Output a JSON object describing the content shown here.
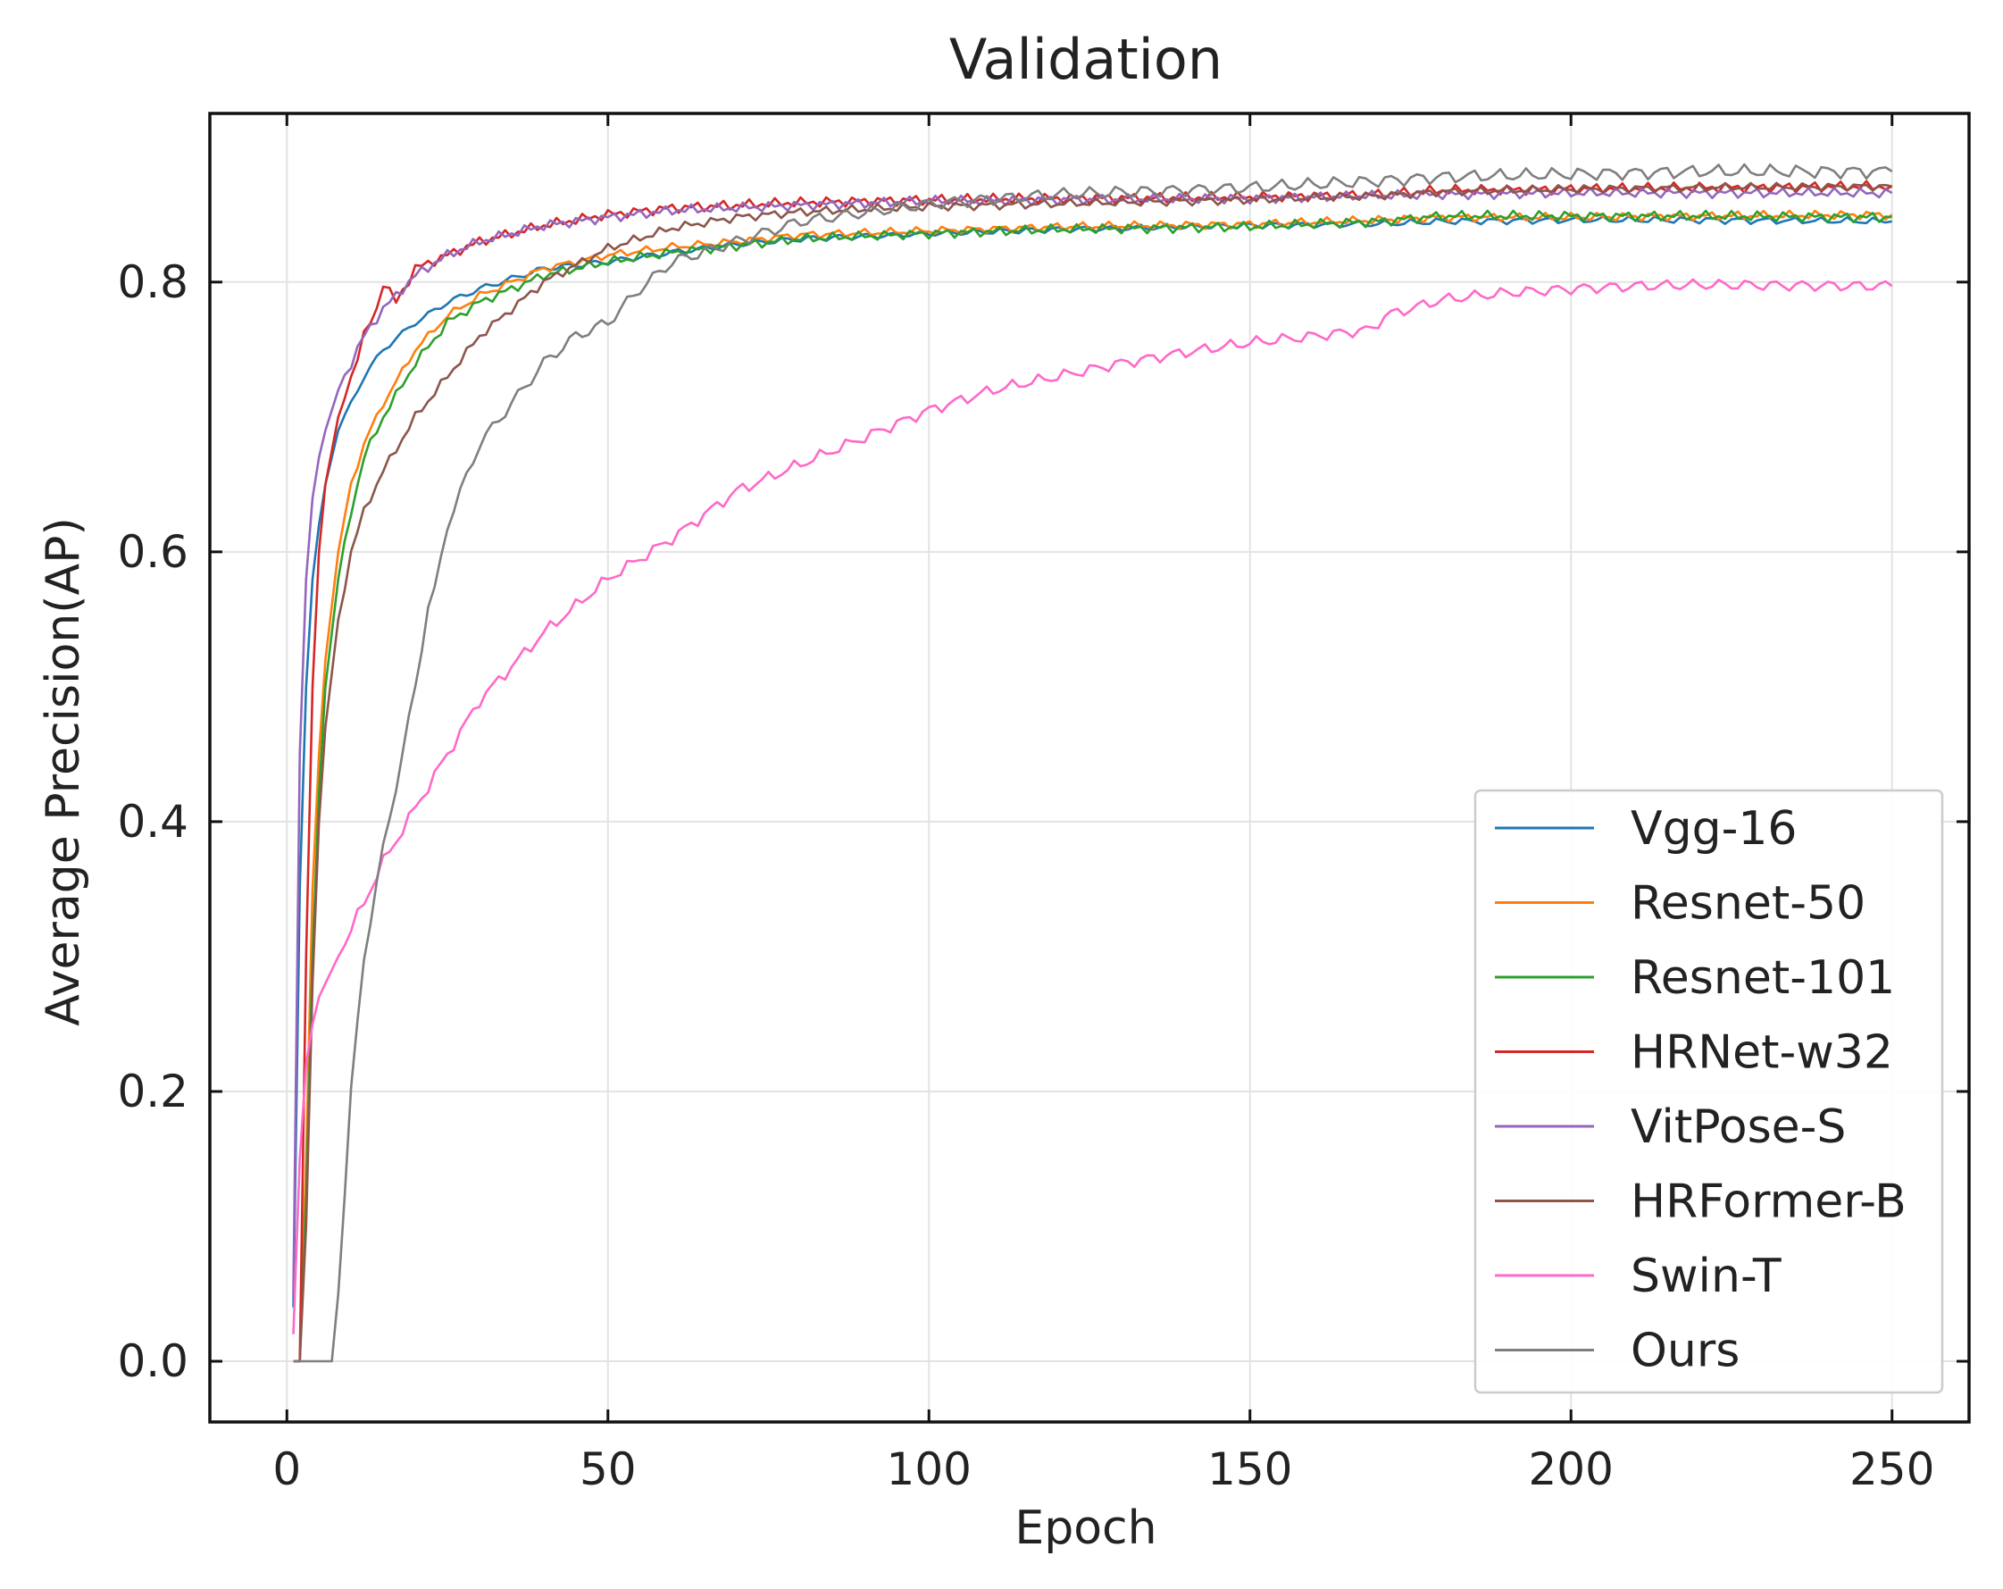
{
  "chart_data": {
    "type": "line",
    "title": "Validation",
    "xlabel": "Epoch",
    "ylabel": "Average Precision(AP)",
    "xlim": [
      -12,
      262
    ],
    "ylim": [
      -0.045,
      0.925
    ],
    "xticks": [
      0,
      50,
      100,
      150,
      200,
      250
    ],
    "xtick_labels": [
      "0",
      "50",
      "100",
      "150",
      "200",
      "250"
    ],
    "yticks": [
      0.0,
      0.2,
      0.4,
      0.6,
      0.8
    ],
    "ytick_labels": [
      "0.0",
      "0.2",
      "0.4",
      "0.6",
      "0.8"
    ],
    "grid": true,
    "legend_position": "lower-right",
    "series": [
      {
        "name": "Vgg-16",
        "color": "#1f77b4",
        "x": [
          1,
          2,
          3,
          4,
          5,
          6,
          7,
          8,
          10,
          12,
          15,
          20,
          25,
          30,
          40,
          50,
          60,
          70,
          80,
          100,
          120,
          150,
          170,
          180,
          200,
          220,
          250
        ],
        "y": [
          0.04,
          0.35,
          0.5,
          0.58,
          0.62,
          0.65,
          0.67,
          0.69,
          0.71,
          0.73,
          0.75,
          0.77,
          0.785,
          0.795,
          0.81,
          0.815,
          0.822,
          0.828,
          0.832,
          0.836,
          0.839,
          0.842,
          0.843,
          0.845,
          0.846,
          0.846,
          0.845
        ]
      },
      {
        "name": "Resnet-50",
        "color": "#ff7f0e",
        "x": [
          1,
          2,
          3,
          4,
          5,
          6,
          8,
          10,
          12,
          15,
          20,
          25,
          30,
          40,
          50,
          60,
          70,
          80,
          100,
          120,
          150,
          170,
          180,
          200,
          220,
          250
        ],
        "y": [
          0.0,
          0.0,
          0.15,
          0.35,
          0.45,
          0.52,
          0.6,
          0.65,
          0.68,
          0.71,
          0.75,
          0.775,
          0.79,
          0.81,
          0.82,
          0.826,
          0.83,
          0.835,
          0.838,
          0.841,
          0.843,
          0.846,
          0.848,
          0.848,
          0.849,
          0.85
        ]
      },
      {
        "name": "Resnet-101",
        "color": "#2ca02c",
        "x": [
          1,
          2,
          3,
          4,
          5,
          6,
          8,
          10,
          12,
          15,
          20,
          25,
          30,
          40,
          50,
          60,
          70,
          80,
          100,
          120,
          150,
          170,
          180,
          200,
          220,
          250
        ],
        "y": [
          0.0,
          0.0,
          0.12,
          0.3,
          0.42,
          0.5,
          0.58,
          0.63,
          0.67,
          0.7,
          0.74,
          0.77,
          0.785,
          0.805,
          0.815,
          0.822,
          0.827,
          0.832,
          0.836,
          0.839,
          0.841,
          0.845,
          0.849,
          0.849,
          0.849,
          0.848
        ]
      },
      {
        "name": "HRNet-w32",
        "color": "#d62728",
        "x": [
          1,
          2,
          3,
          4,
          5,
          6,
          8,
          10,
          12,
          14,
          15,
          17,
          20,
          25,
          30,
          40,
          50,
          60,
          70,
          80,
          100,
          120,
          150,
          170,
          180,
          200,
          220,
          250
        ],
        "y": [
          0.0,
          0.0,
          0.3,
          0.5,
          0.6,
          0.65,
          0.7,
          0.73,
          0.76,
          0.78,
          0.8,
          0.785,
          0.81,
          0.82,
          0.83,
          0.842,
          0.85,
          0.855,
          0.857,
          0.859,
          0.861,
          0.862,
          0.863,
          0.865,
          0.868,
          0.869,
          0.87,
          0.871
        ]
      },
      {
        "name": "VitPose-S",
        "color": "#9467bd",
        "x": [
          1,
          2,
          3,
          4,
          5,
          6,
          8,
          10,
          12,
          15,
          20,
          25,
          30,
          40,
          50,
          60,
          70,
          80,
          100,
          120,
          150,
          170,
          180,
          200,
          220,
          250
        ],
        "y": [
          0.05,
          0.45,
          0.58,
          0.64,
          0.67,
          0.69,
          0.72,
          0.74,
          0.76,
          0.78,
          0.805,
          0.82,
          0.83,
          0.842,
          0.848,
          0.853,
          0.855,
          0.857,
          0.86,
          0.861,
          0.862,
          0.864,
          0.865,
          0.866,
          0.866,
          0.866
        ]
      },
      {
        "name": "HRFormer-B",
        "color": "#8c564b",
        "x": [
          1,
          2,
          3,
          4,
          5,
          6,
          8,
          10,
          12,
          15,
          20,
          25,
          30,
          40,
          50,
          60,
          70,
          80,
          100,
          120,
          150,
          170,
          180,
          200,
          220,
          250
        ],
        "y": [
          0.0,
          0.0,
          0.1,
          0.28,
          0.4,
          0.47,
          0.55,
          0.6,
          0.63,
          0.66,
          0.7,
          0.73,
          0.76,
          0.8,
          0.825,
          0.84,
          0.848,
          0.852,
          0.856,
          0.858,
          0.861,
          0.864,
          0.867,
          0.869,
          0.87,
          0.871
        ]
      },
      {
        "name": "Swin-T",
        "color": "#ff69c8",
        "x": [
          1,
          2,
          3,
          4,
          5,
          6,
          8,
          10,
          12,
          15,
          20,
          25,
          30,
          40,
          50,
          60,
          70,
          80,
          90,
          100,
          110,
          120,
          130,
          140,
          150,
          160,
          169,
          171,
          180,
          190,
          200,
          210,
          220,
          250
        ],
        "y": [
          0.02,
          0.15,
          0.22,
          0.25,
          0.27,
          0.28,
          0.3,
          0.32,
          0.34,
          0.37,
          0.41,
          0.45,
          0.49,
          0.54,
          0.58,
          0.61,
          0.645,
          0.665,
          0.685,
          0.705,
          0.72,
          0.73,
          0.74,
          0.748,
          0.755,
          0.76,
          0.765,
          0.775,
          0.787,
          0.792,
          0.795,
          0.797,
          0.798,
          0.797
        ]
      },
      {
        "name": "Ours",
        "color": "#7f7f7f",
        "x": [
          1,
          5,
          7,
          8,
          10,
          12,
          15,
          18,
          20,
          22,
          23,
          25,
          30,
          35,
          40,
          45,
          50,
          55,
          60,
          70,
          80,
          100,
          120,
          150,
          170,
          180,
          200,
          220,
          250
        ],
        "y": [
          0.0,
          0.0,
          0.0,
          0.05,
          0.2,
          0.3,
          0.38,
          0.45,
          0.5,
          0.56,
          0.57,
          0.62,
          0.68,
          0.71,
          0.74,
          0.76,
          0.77,
          0.795,
          0.815,
          0.83,
          0.845,
          0.858,
          0.865,
          0.87,
          0.875,
          0.878,
          0.88,
          0.882,
          0.882
        ]
      }
    ]
  }
}
